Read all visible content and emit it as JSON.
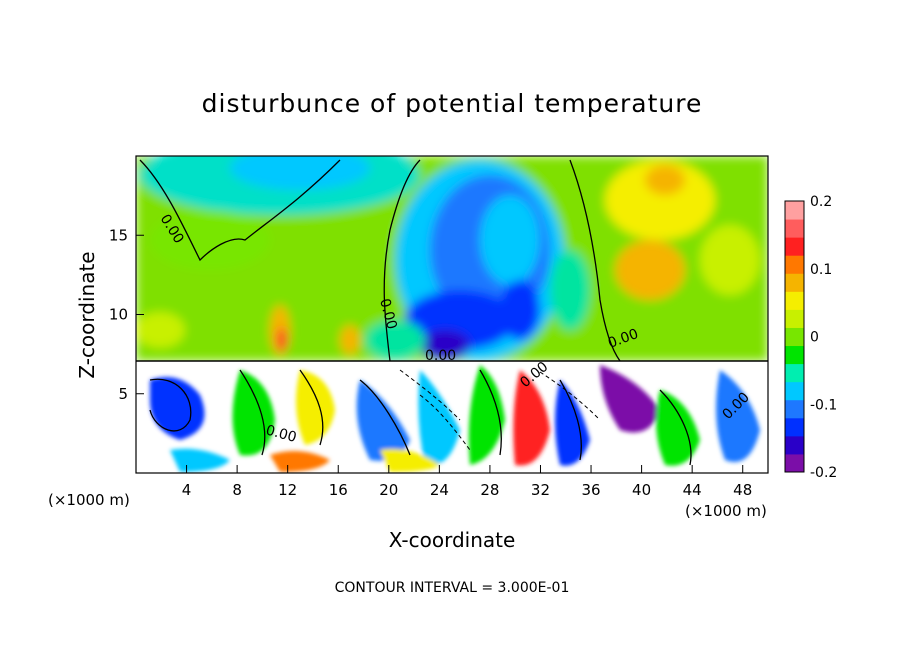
{
  "chart_data": {
    "type": "heatmap",
    "title": "disturbunce of potential temperature",
    "xlabel": "X-coordinate",
    "ylabel": "Z-coordinate",
    "x_unit_left": "(×1000 m)",
    "x_unit_right": "(×1000 m)",
    "xlim": [
      0,
      50
    ],
    "ylim": [
      0,
      20
    ],
    "x_ticks": [
      4,
      8,
      12,
      16,
      20,
      24,
      28,
      32,
      36,
      40,
      44,
      48
    ],
    "y_ticks": [
      5,
      10,
      15
    ],
    "colorbar": {
      "min": -0.2,
      "max": 0.2,
      "tick_labels": [
        "0.2",
        "0.1",
        "0",
        "-0.1",
        "-0.2"
      ],
      "tick_values": [
        0.2,
        0.1,
        0,
        -0.1,
        -0.2
      ],
      "colors": [
        "#7b0ea8",
        "#2a00c8",
        "#0030ff",
        "#1e78ff",
        "#00c8ff",
        "#00eeb0",
        "#00e400",
        "#78e600",
        "#c8f000",
        "#f5ee00",
        "#f5b400",
        "#ff7800",
        "#ff2020",
        "#ff5d5d",
        "#ffa0a0"
      ]
    },
    "contour_labels": [
      "0.00",
      "0.00",
      "0.00",
      "0.00",
      "0.00",
      "0.00",
      "0.00"
    ],
    "footnote": "CONTOUR INTERVAL = 3.000E-01"
  }
}
